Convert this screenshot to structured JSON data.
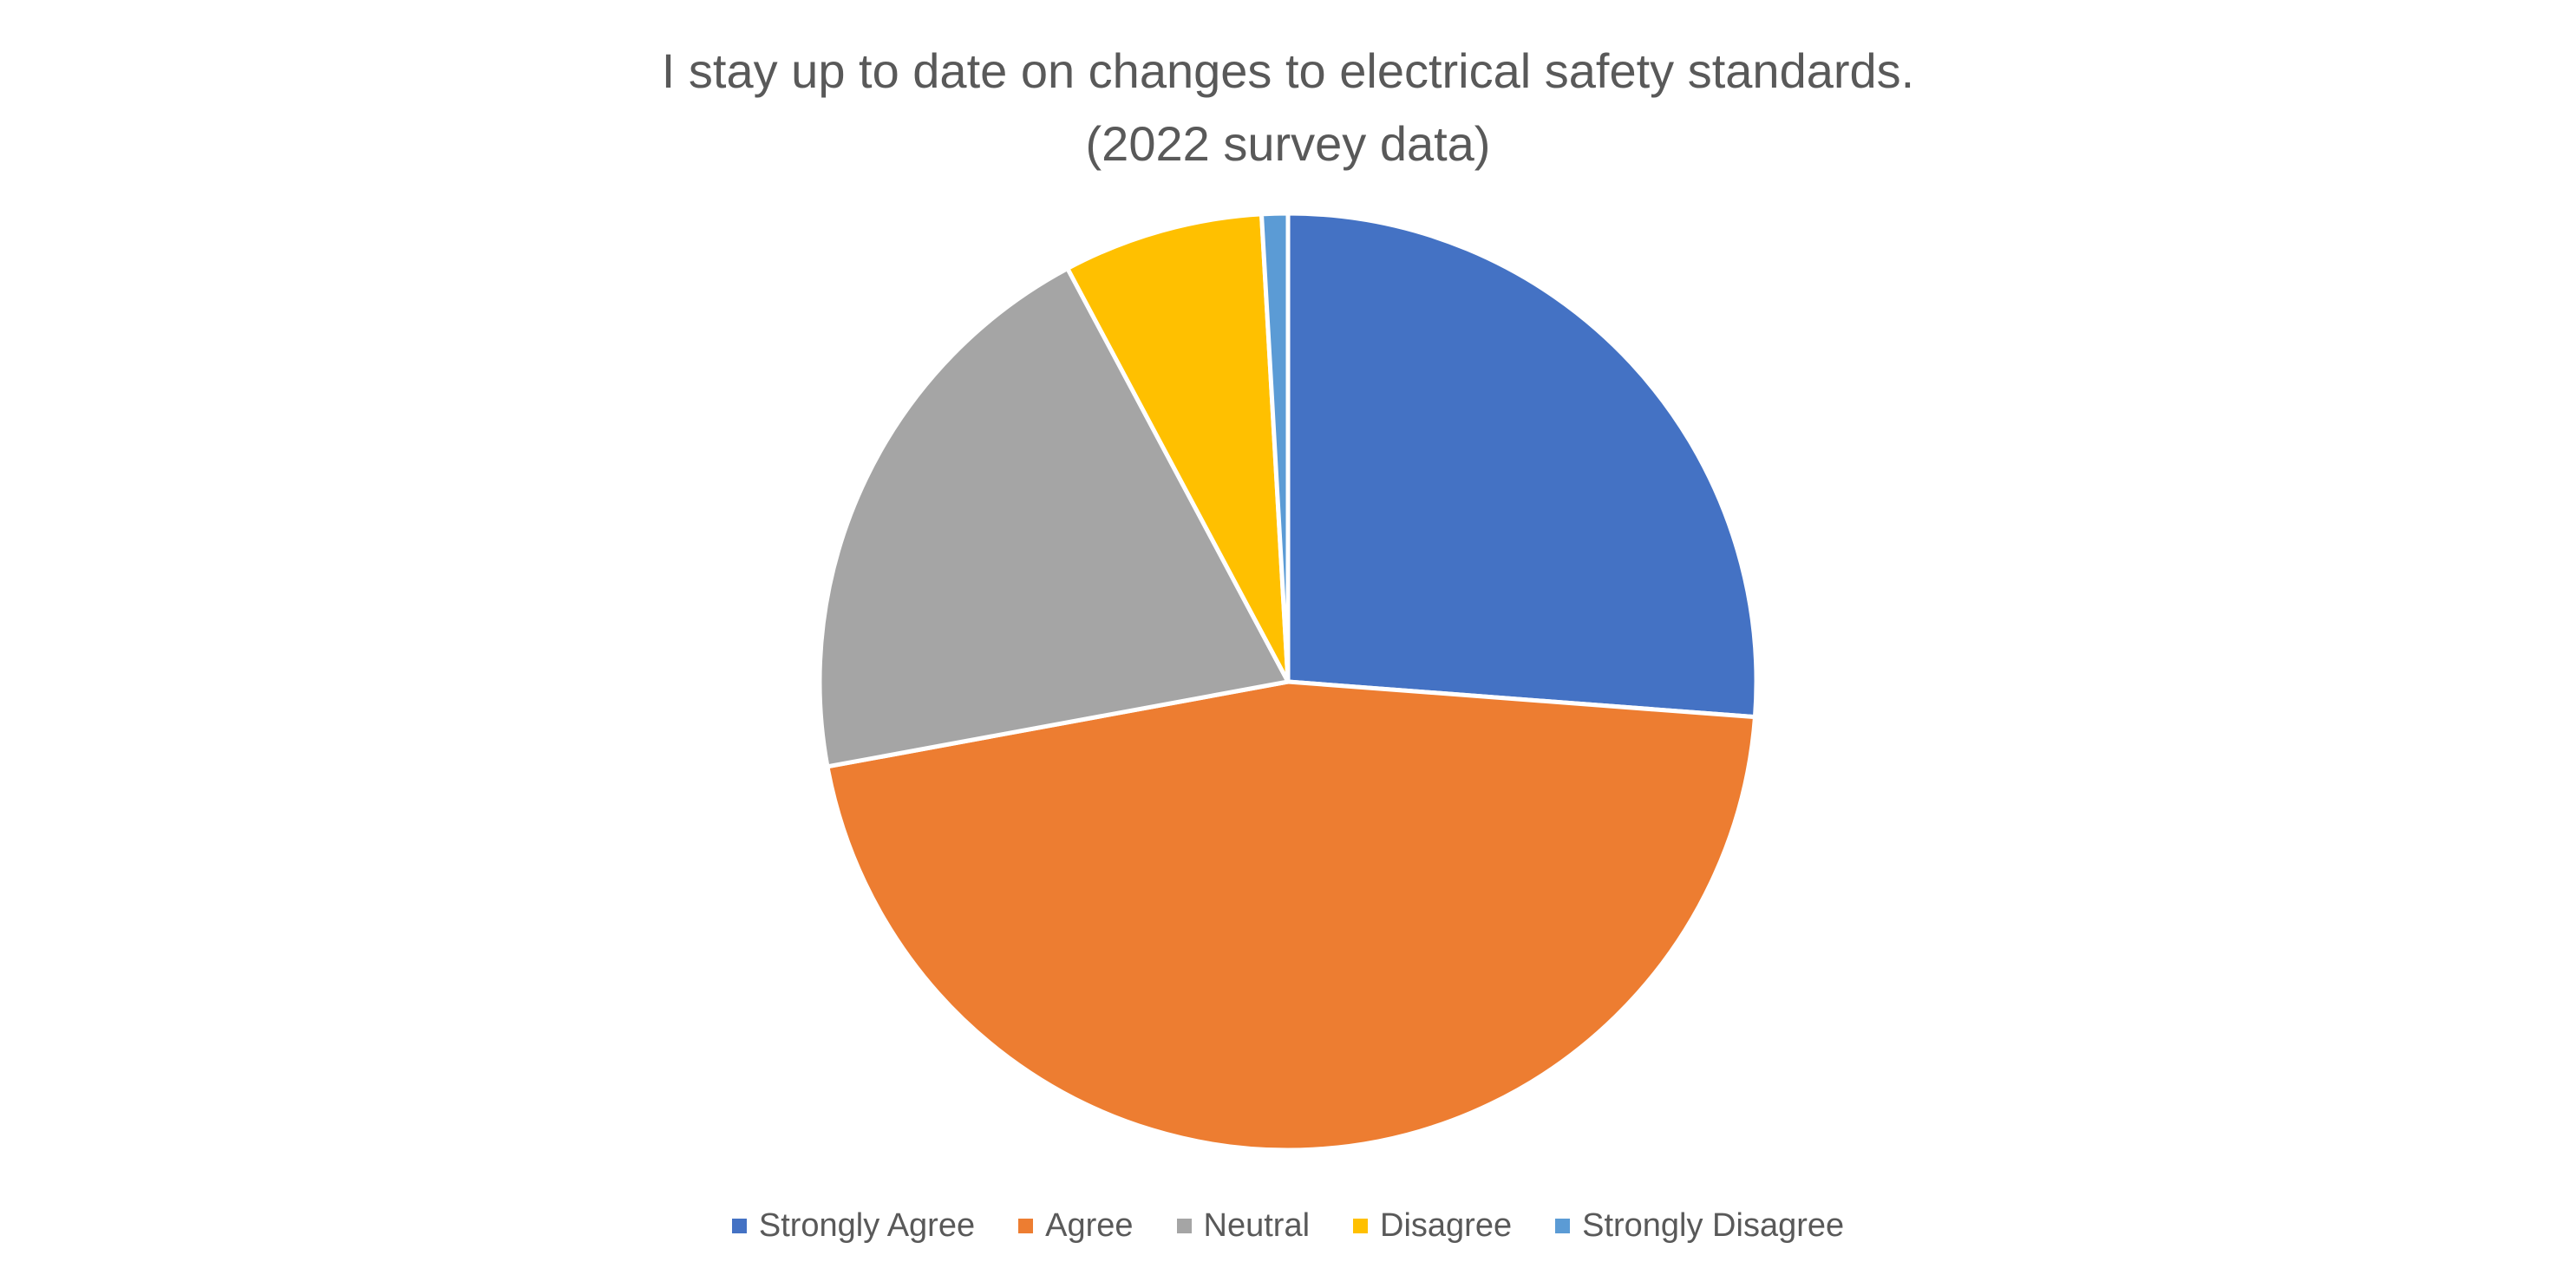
{
  "chart_data": {
    "type": "pie",
    "title": "I stay up to date on changes to electrical safety standards.",
    "subtitle": "(2022 survey data)",
    "categories": [
      "Strongly Agree",
      "Agree",
      "Neutral",
      "Disagree",
      "Strongly Disagree"
    ],
    "values": [
      26.2,
      45.9,
      20.1,
      6.9,
      0.9
    ],
    "colors": [
      "#4472C4",
      "#ED7D31",
      "#A5A5A5",
      "#FFC000",
      "#5B9BD5"
    ],
    "start_angle_deg": 0,
    "direction": "clockwise",
    "legend_position": "bottom"
  }
}
